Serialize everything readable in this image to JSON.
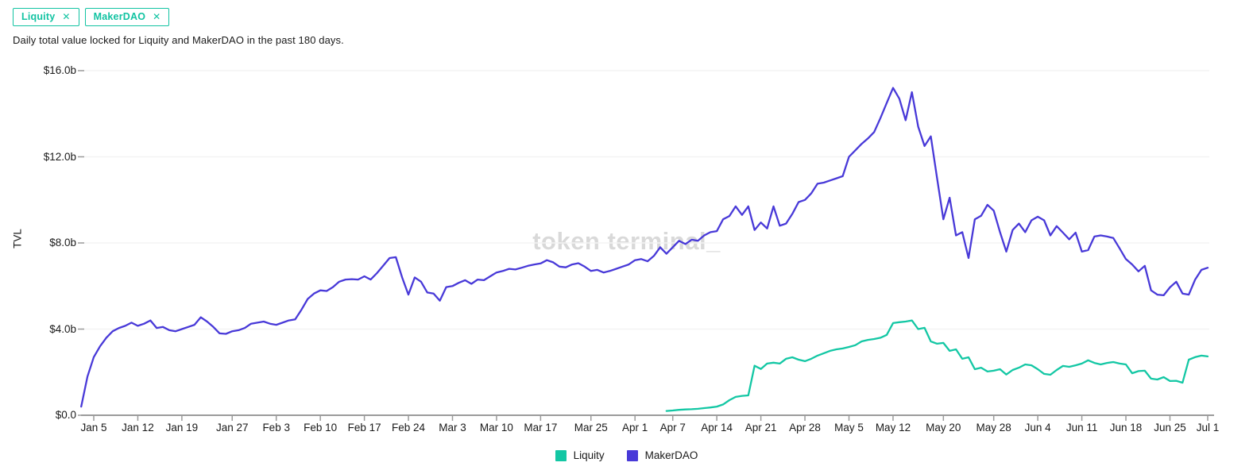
{
  "chips": [
    {
      "label": "Liquity",
      "remove_icon": "✕"
    },
    {
      "label": "MakerDAO",
      "remove_icon": "✕"
    }
  ],
  "subtitle": {
    "text": "Daily total value locked for Liquity and MakerDAO in the past 180 days."
  },
  "watermark": {
    "text": "token terminal_"
  },
  "colors": {
    "accent_teal": "#13c7a4",
    "accent_purple": "#4839d8",
    "axis": "#9b9b9b",
    "gridline": "#f4f4f4",
    "watermark": "#d9d9d9",
    "text": "#111111"
  },
  "chart_data": {
    "type": "line",
    "title": "Daily total value locked for Liquity and MakerDAO in the past 180 days.",
    "ylabel": "TVL",
    "unit": "$ billions",
    "x_start": "Jan 3",
    "x_end": "Jul 1",
    "days": 180,
    "ylim": [
      0,
      16
    ],
    "grid": "horizontal",
    "legend_position": "bottom-center",
    "yticks": [
      {
        "label": "$0.0",
        "value": 0
      },
      {
        "label": "$4.0b",
        "value": 4
      },
      {
        "label": "$8.0b",
        "value": 8
      },
      {
        "label": "$12.0b",
        "value": 12
      },
      {
        "label": "$16.0b",
        "value": 16
      }
    ],
    "xticks": [
      {
        "label": "Jan 5",
        "day": 2
      },
      {
        "label": "Jan 12",
        "day": 9
      },
      {
        "label": "Jan 19",
        "day": 16
      },
      {
        "label": "Jan 27",
        "day": 24
      },
      {
        "label": "Feb 3",
        "day": 31
      },
      {
        "label": "Feb 10",
        "day": 38
      },
      {
        "label": "Feb 17",
        "day": 45
      },
      {
        "label": "Feb 24",
        "day": 52
      },
      {
        "label": "Mar 3",
        "day": 59
      },
      {
        "label": "Mar 10",
        "day": 66
      },
      {
        "label": "Mar 17",
        "day": 73
      },
      {
        "label": "Mar 25",
        "day": 81
      },
      {
        "label": "Apr 1",
        "day": 88
      },
      {
        "label": "Apr 7",
        "day": 94
      },
      {
        "label": "Apr 14",
        "day": 101
      },
      {
        "label": "Apr 21",
        "day": 108
      },
      {
        "label": "Apr 28",
        "day": 115
      },
      {
        "label": "May 5",
        "day": 122
      },
      {
        "label": "May 12",
        "day": 129
      },
      {
        "label": "May 20",
        "day": 137
      },
      {
        "label": "May 28",
        "day": 145
      },
      {
        "label": "Jun 4",
        "day": 152
      },
      {
        "label": "Jun 11",
        "day": 159
      },
      {
        "label": "Jun 18",
        "day": 166
      },
      {
        "label": "Jun 25",
        "day": 173
      },
      {
        "label": "Jul 1",
        "day": 179
      }
    ],
    "series": [
      {
        "name": "Liquity",
        "color": "#13c7a4",
        "start_day": 93,
        "values": [
          0.2,
          0.22,
          0.25,
          0.27,
          0.28,
          0.3,
          0.33,
          0.36,
          0.4,
          0.5,
          0.7,
          0.85,
          0.9,
          0.92,
          2.3,
          2.15,
          2.4,
          2.44,
          2.4,
          2.62,
          2.69,
          2.58,
          2.51,
          2.62,
          2.77,
          2.88,
          2.99,
          3.06,
          3.1,
          3.17,
          3.25,
          3.43,
          3.5,
          3.54,
          3.6,
          3.73,
          4.28,
          4.32,
          4.35,
          4.4,
          4.0,
          4.06,
          3.43,
          3.32,
          3.36,
          2.99,
          3.06,
          2.62,
          2.69,
          2.14,
          2.21,
          2.03,
          2.07,
          2.14,
          1.89,
          2.1,
          2.21,
          2.36,
          2.32,
          2.14,
          1.92,
          1.88,
          2.1,
          2.29,
          2.25,
          2.32,
          2.4,
          2.55,
          2.43,
          2.36,
          2.43,
          2.47,
          2.4,
          2.36,
          1.95,
          2.05,
          2.07,
          1.7,
          1.66,
          1.77,
          1.59,
          1.6,
          1.51,
          2.58,
          2.7,
          2.77,
          2.73
        ]
      },
      {
        "name": "MakerDAO",
        "color": "#4839d8",
        "start_day": 0,
        "values": [
          0.4,
          1.8,
          2.7,
          3.2,
          3.6,
          3.9,
          4.05,
          4.15,
          4.3,
          4.15,
          4.25,
          4.4,
          4.05,
          4.1,
          3.95,
          3.9,
          4.0,
          4.1,
          4.2,
          4.55,
          4.35,
          4.1,
          3.8,
          3.78,
          3.9,
          3.95,
          4.05,
          4.25,
          4.3,
          4.35,
          4.25,
          4.2,
          4.3,
          4.4,
          4.45,
          4.9,
          5.4,
          5.65,
          5.8,
          5.77,
          5.95,
          6.2,
          6.3,
          6.32,
          6.3,
          6.45,
          6.3,
          6.6,
          6.95,
          7.3,
          7.34,
          6.4,
          5.6,
          6.4,
          6.2,
          5.7,
          5.65,
          5.32,
          5.95,
          6.0,
          6.15,
          6.27,
          6.1,
          6.3,
          6.27,
          6.45,
          6.63,
          6.7,
          6.8,
          6.77,
          6.85,
          6.94,
          7.0,
          7.05,
          7.2,
          7.1,
          6.9,
          6.87,
          7.0,
          7.06,
          6.9,
          6.7,
          6.75,
          6.63,
          6.7,
          6.8,
          6.9,
          7.0,
          7.2,
          7.25,
          7.15,
          7.4,
          7.8,
          7.5,
          7.8,
          8.1,
          7.95,
          8.15,
          8.1,
          8.35,
          8.5,
          8.55,
          9.1,
          9.25,
          9.7,
          9.3,
          9.7,
          8.6,
          8.95,
          8.67,
          9.7,
          8.8,
          8.9,
          9.35,
          9.9,
          10.0,
          10.3,
          10.75,
          10.8,
          10.9,
          11.0,
          11.1,
          12.0,
          12.3,
          12.6,
          12.85,
          13.15,
          13.8,
          14.5,
          15.2,
          14.7,
          13.7,
          15.0,
          13.4,
          12.5,
          12.95,
          11.0,
          9.1,
          10.1,
          8.35,
          8.5,
          7.3,
          9.1,
          9.26,
          9.77,
          9.5,
          8.5,
          7.6,
          8.6,
          8.9,
          8.5,
          9.05,
          9.22,
          9.05,
          8.35,
          8.78,
          8.48,
          8.17,
          8.48,
          7.6,
          7.67,
          8.3,
          8.35,
          8.3,
          8.23,
          7.75,
          7.25,
          7.0,
          6.68,
          6.94,
          5.8,
          5.6,
          5.57,
          5.94,
          6.2,
          5.65,
          5.6,
          6.3,
          6.75,
          6.85
        ]
      }
    ]
  }
}
